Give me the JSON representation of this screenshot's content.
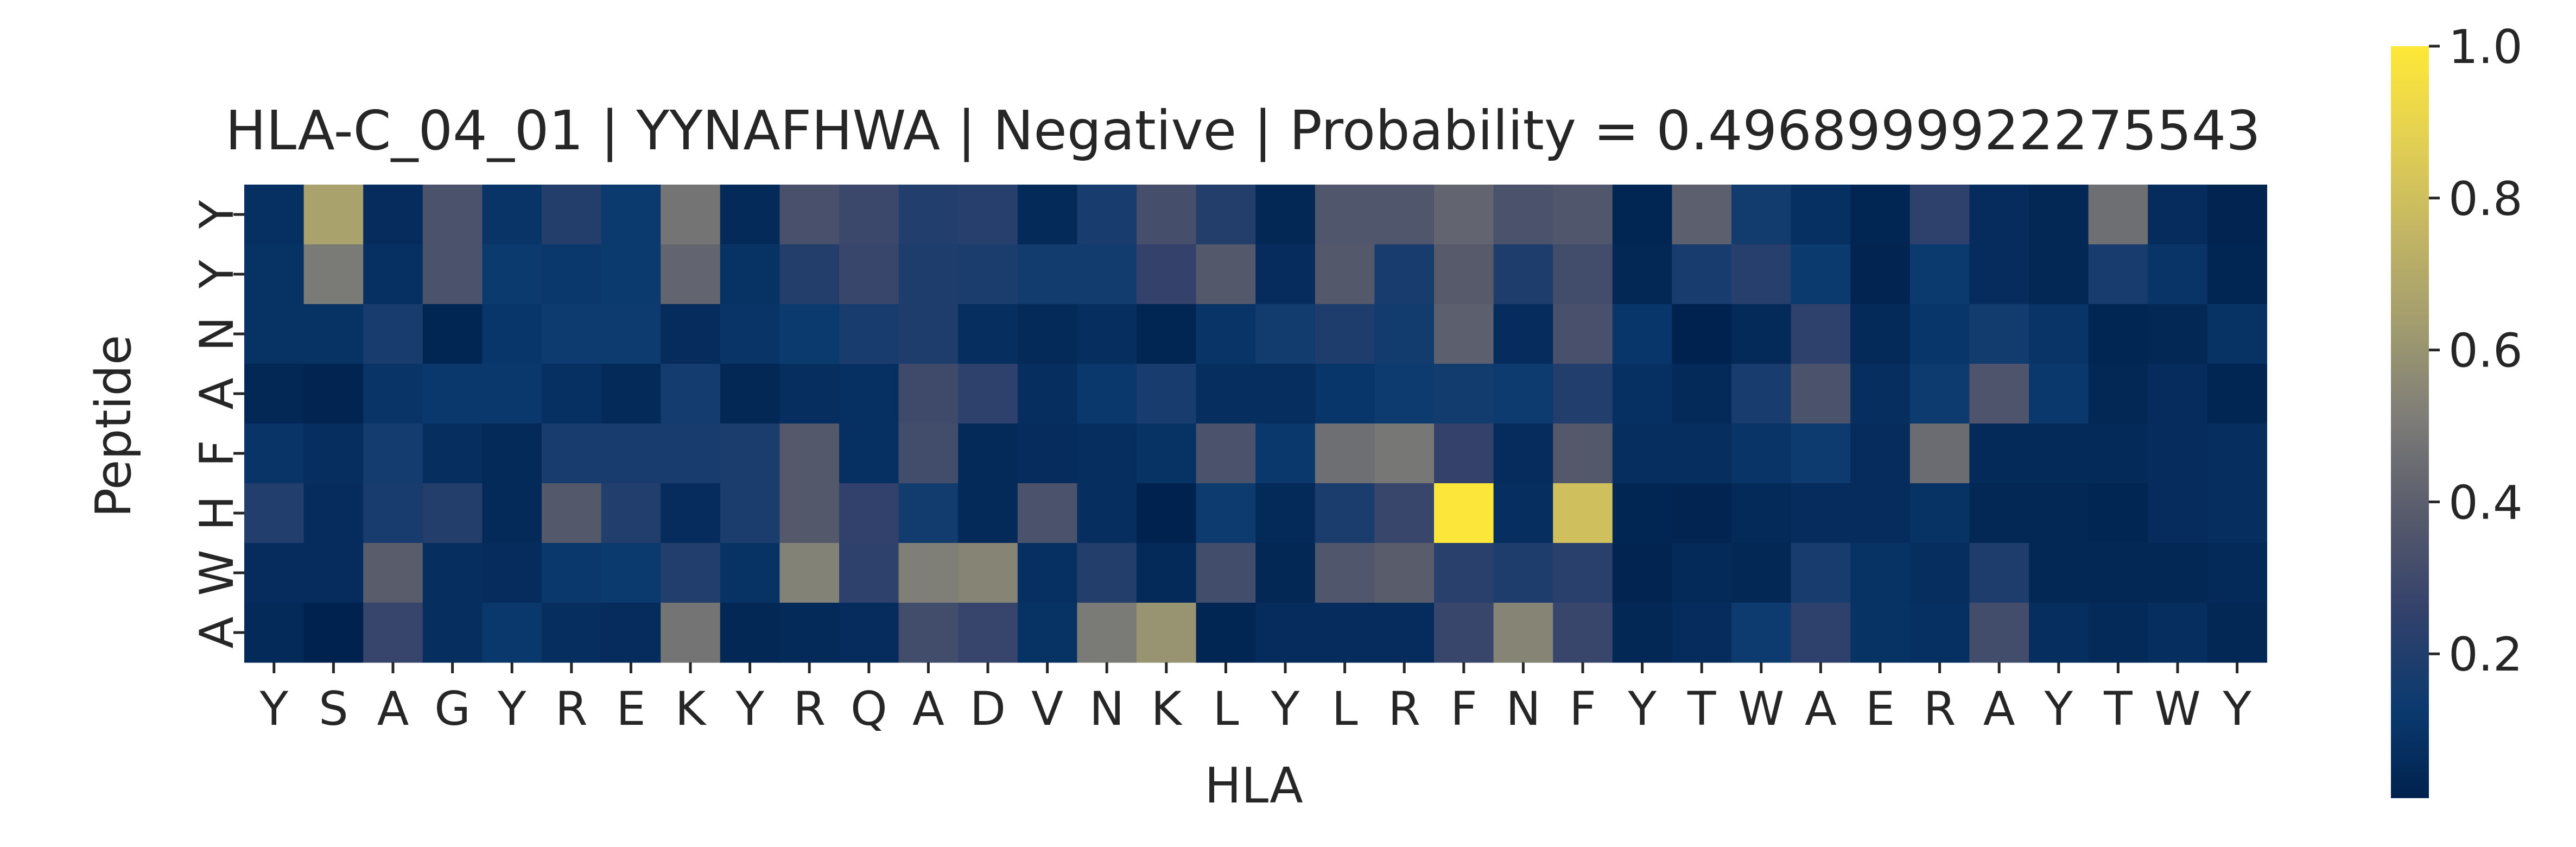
{
  "chart_data": {
    "type": "heatmap",
    "title": "HLA-C_04_01 | YYNAFHWA | Negative | Probability = 0.4968999922275543",
    "xlabel": "HLA",
    "ylabel": "Peptide",
    "colormap": "cividis",
    "x_tick_labels": [
      "Y",
      "S",
      "A",
      "G",
      "Y",
      "R",
      "E",
      "K",
      "Y",
      "R",
      "Q",
      "A",
      "D",
      "V",
      "N",
      "K",
      "L",
      "Y",
      "L",
      "R",
      "F",
      "N",
      "F",
      "Y",
      "T",
      "W",
      "A",
      "E",
      "R",
      "A",
      "Y",
      "T",
      "W",
      "Y"
    ],
    "y_tick_labels": [
      "Y",
      "Y",
      "N",
      "A",
      "F",
      "H",
      "W",
      "A"
    ],
    "colorbar": {
      "vmin": 0.01,
      "vmax": 1.0,
      "ticks": [
        "0.2",
        "0.4",
        "0.6",
        "0.8",
        "1.0"
      ],
      "tick_values": [
        0.2,
        0.4,
        0.6,
        0.8,
        1.0
      ]
    },
    "values": [
      [
        0.08,
        0.66,
        0.06,
        0.34,
        0.1,
        0.21,
        0.13,
        0.48,
        0.05,
        0.33,
        0.29,
        0.2,
        0.22,
        0.05,
        0.17,
        0.32,
        0.21,
        0.04,
        0.36,
        0.36,
        0.42,
        0.34,
        0.36,
        0.03,
        0.4,
        0.15,
        0.08,
        0.03,
        0.24,
        0.06,
        0.04,
        0.46,
        0.06,
        0.02
      ],
      [
        0.09,
        0.5,
        0.08,
        0.34,
        0.13,
        0.12,
        0.13,
        0.42,
        0.09,
        0.21,
        0.28,
        0.19,
        0.18,
        0.15,
        0.15,
        0.26,
        0.37,
        0.06,
        0.37,
        0.17,
        0.38,
        0.19,
        0.31,
        0.04,
        0.17,
        0.22,
        0.13,
        0.02,
        0.13,
        0.06,
        0.04,
        0.17,
        0.1,
        0.03
      ],
      [
        0.09,
        0.09,
        0.17,
        0.03,
        0.11,
        0.14,
        0.14,
        0.06,
        0.1,
        0.13,
        0.17,
        0.19,
        0.07,
        0.05,
        0.07,
        0.03,
        0.1,
        0.15,
        0.19,
        0.15,
        0.4,
        0.06,
        0.33,
        0.11,
        0.01,
        0.05,
        0.24,
        0.05,
        0.11,
        0.15,
        0.1,
        0.03,
        0.04,
        0.09
      ],
      [
        0.04,
        0.02,
        0.1,
        0.12,
        0.12,
        0.08,
        0.05,
        0.16,
        0.04,
        0.07,
        0.08,
        0.3,
        0.24,
        0.07,
        0.12,
        0.17,
        0.07,
        0.07,
        0.11,
        0.14,
        0.15,
        0.14,
        0.2,
        0.08,
        0.05,
        0.17,
        0.34,
        0.07,
        0.14,
        0.35,
        0.12,
        0.04,
        0.06,
        0.03
      ],
      [
        0.1,
        0.07,
        0.16,
        0.07,
        0.05,
        0.17,
        0.17,
        0.17,
        0.18,
        0.37,
        0.08,
        0.31,
        0.05,
        0.06,
        0.07,
        0.09,
        0.34,
        0.12,
        0.46,
        0.49,
        0.26,
        0.06,
        0.37,
        0.07,
        0.07,
        0.1,
        0.14,
        0.06,
        0.45,
        0.05,
        0.05,
        0.05,
        0.06,
        0.07
      ],
      [
        0.2,
        0.06,
        0.17,
        0.21,
        0.05,
        0.37,
        0.2,
        0.06,
        0.18,
        0.37,
        0.25,
        0.15,
        0.05,
        0.34,
        0.07,
        0.01,
        0.14,
        0.05,
        0.18,
        0.28,
        0.99,
        0.07,
        0.8,
        0.03,
        0.02,
        0.05,
        0.06,
        0.06,
        0.09,
        0.04,
        0.04,
        0.03,
        0.06,
        0.07
      ],
      [
        0.06,
        0.06,
        0.39,
        0.07,
        0.06,
        0.12,
        0.13,
        0.2,
        0.09,
        0.53,
        0.24,
        0.52,
        0.54,
        0.08,
        0.21,
        0.05,
        0.31,
        0.04,
        0.36,
        0.39,
        0.23,
        0.19,
        0.23,
        0.02,
        0.05,
        0.04,
        0.17,
        0.09,
        0.07,
        0.19,
        0.04,
        0.04,
        0.04,
        0.05
      ],
      [
        0.05,
        0.01,
        0.27,
        0.07,
        0.12,
        0.07,
        0.06,
        0.48,
        0.04,
        0.05,
        0.06,
        0.31,
        0.27,
        0.09,
        0.5,
        0.6,
        0.03,
        0.06,
        0.06,
        0.06,
        0.28,
        0.54,
        0.28,
        0.04,
        0.06,
        0.14,
        0.24,
        0.09,
        0.08,
        0.31,
        0.07,
        0.05,
        0.07,
        0.04
      ]
    ]
  }
}
